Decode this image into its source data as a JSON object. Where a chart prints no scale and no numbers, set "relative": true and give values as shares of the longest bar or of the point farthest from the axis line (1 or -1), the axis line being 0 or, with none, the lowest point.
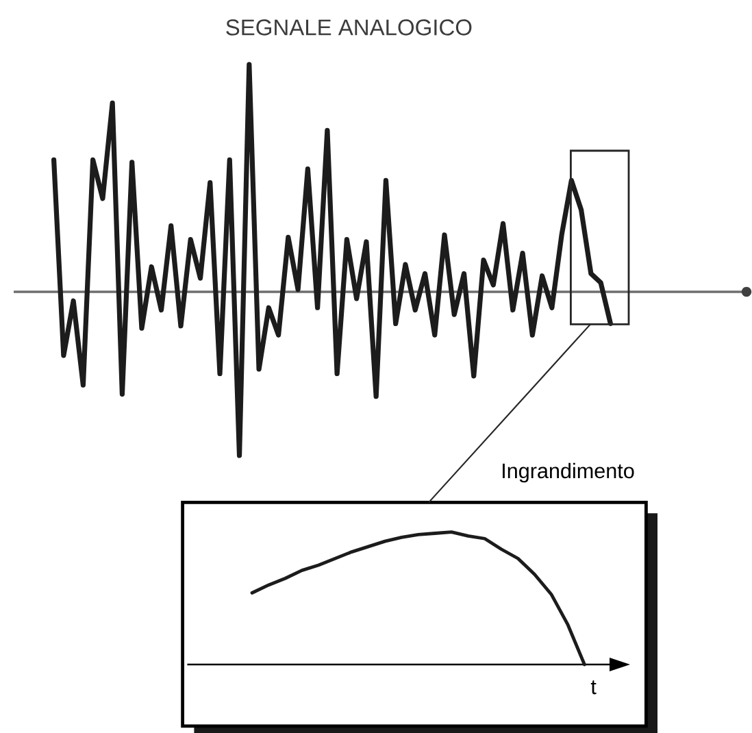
{
  "chart_data": [
    {
      "type": "line",
      "title": "SEGNALE ANALOGICO",
      "relative": true,
      "categories": [
        null,
        null,
        null,
        null,
        null,
        null,
        null,
        null,
        null,
        null,
        null,
        null,
        null,
        null,
        null,
        null,
        null,
        null,
        null,
        null,
        null,
        null,
        null,
        null,
        null,
        null,
        null,
        null,
        null,
        null,
        null,
        null,
        null,
        null,
        null,
        null,
        null,
        null,
        null,
        null,
        null,
        null,
        null,
        null,
        null,
        null,
        null,
        null,
        null,
        null,
        null,
        null,
        null,
        null,
        null,
        null,
        null,
        null
      ],
      "color": "#1c1c1c",
      "values": [
        0.58,
        -0.28,
        -0.04,
        -0.41,
        0.58,
        0.41,
        0.83,
        -0.45,
        0.57,
        -0.16,
        0.11,
        -0.08,
        0.29,
        -0.15,
        0.23,
        0.06,
        0.48,
        -0.36,
        0.58,
        -0.72,
        1,
        -0.34,
        -0.07,
        -0.19,
        0.24,
        0.01,
        0.54,
        -0.07,
        0.71,
        -0.36,
        0.23,
        -0.03,
        0.22,
        -0.46,
        0.49,
        -0.14,
        0.12,
        -0.08,
        0.08,
        -0.19,
        0.25,
        -0.1,
        0.08,
        -0.37,
        0.14,
        0.03,
        0.3,
        -0.08,
        0.17,
        -0.19,
        0.07,
        -0.07,
        0.25,
        0.49,
        0.36,
        0.08,
        0.04,
        -0.14
      ]
    },
    {
      "type": "line",
      "title": "Ingrandimento",
      "xlabel": "t",
      "relative": true,
      "categories": [
        null,
        null,
        null,
        null,
        null,
        null,
        null,
        null,
        null,
        null,
        null,
        null,
        null,
        null,
        null,
        null,
        null,
        null,
        null,
        null,
        null
      ],
      "color": "#1c1c1c",
      "values": [
        0.54,
        0.6,
        0.65,
        0.71,
        0.75,
        0.8,
        0.85,
        0.89,
        0.93,
        0.96,
        0.98,
        0.99,
        1,
        0.97,
        0.95,
        0.87,
        0.8,
        0.68,
        0.53,
        0.3,
        0
      ]
    }
  ]
}
